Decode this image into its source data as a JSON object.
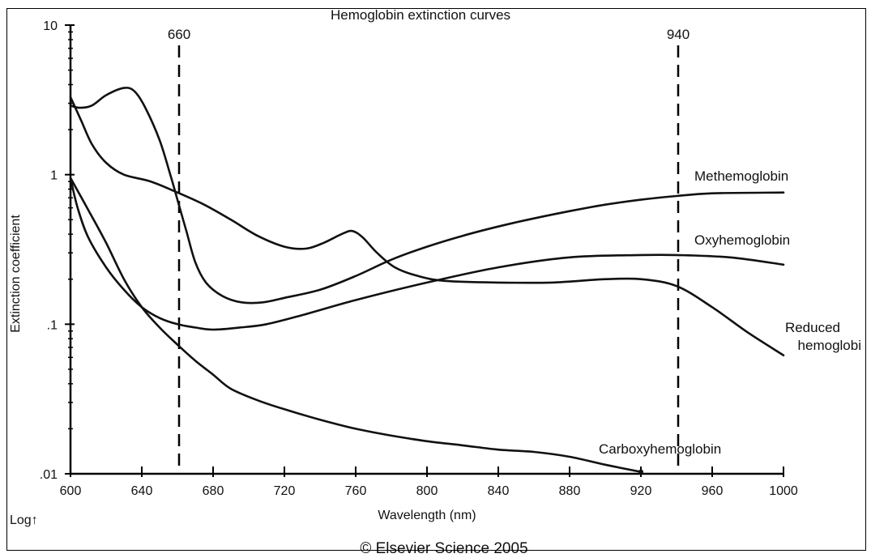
{
  "chart_data": {
    "type": "line",
    "title": "Hemoglobin extinction curves",
    "xlabel": "Wavelength (nm)",
    "ylabel": "Extinction coefficient",
    "y_scale": "log",
    "scale_note": "Log↑",
    "credit": "© Elsevier Science 2005",
    "xlim": [
      600,
      1000
    ],
    "ylim": [
      0.01,
      10
    ],
    "x_ticks": [
      600,
      640,
      680,
      720,
      760,
      800,
      840,
      880,
      920,
      960,
      1000
    ],
    "y_ticks": [
      {
        "value": 0.01,
        "label": ".01"
      },
      {
        "value": 0.1,
        "label": ".1"
      },
      {
        "value": 1,
        "label": "1"
      },
      {
        "value": 10,
        "label": "10"
      }
    ],
    "reference_lines": [
      {
        "x": 660,
        "label": "660"
      },
      {
        "x": 940,
        "label": "940"
      }
    ],
    "grid": false,
    "legend": "none (series labeled directly on curves)",
    "series": [
      {
        "name": "Methemoglobin",
        "points": [
          [
            600,
            2.9
          ],
          [
            605,
            2.8
          ],
          [
            612,
            2.9
          ],
          [
            620,
            3.4
          ],
          [
            630,
            3.8
          ],
          [
            636,
            3.6
          ],
          [
            642,
            2.8
          ],
          [
            650,
            1.7
          ],
          [
            656,
            1.0
          ],
          [
            660,
            0.68
          ],
          [
            665,
            0.42
          ],
          [
            670,
            0.26
          ],
          [
            676,
            0.19
          ],
          [
            685,
            0.155
          ],
          [
            696,
            0.14
          ],
          [
            708,
            0.14
          ],
          [
            720,
            0.15
          ],
          [
            740,
            0.17
          ],
          [
            760,
            0.21
          ],
          [
            780,
            0.27
          ],
          [
            800,
            0.33
          ],
          [
            820,
            0.39
          ],
          [
            840,
            0.45
          ],
          [
            860,
            0.51
          ],
          [
            880,
            0.57
          ],
          [
            900,
            0.63
          ],
          [
            920,
            0.68
          ],
          [
            940,
            0.72
          ],
          [
            960,
            0.75
          ],
          [
            1000,
            0.76
          ]
        ]
      },
      {
        "name": "Oxyhemoglobin",
        "points": [
          [
            600,
            0.95
          ],
          [
            604,
            0.6
          ],
          [
            610,
            0.38
          ],
          [
            620,
            0.24
          ],
          [
            630,
            0.17
          ],
          [
            640,
            0.13
          ],
          [
            650,
            0.11
          ],
          [
            660,
            0.1
          ],
          [
            670,
            0.095
          ],
          [
            680,
            0.092
          ],
          [
            695,
            0.095
          ],
          [
            710,
            0.1
          ],
          [
            730,
            0.115
          ],
          [
            760,
            0.145
          ],
          [
            800,
            0.19
          ],
          [
            840,
            0.24
          ],
          [
            880,
            0.28
          ],
          [
            920,
            0.29
          ],
          [
            940,
            0.29
          ],
          [
            970,
            0.28
          ],
          [
            1000,
            0.25
          ]
        ]
      },
      {
        "name": "Reduced hemoglobin",
        "points": [
          [
            600,
            3.3
          ],
          [
            606,
            2.3
          ],
          [
            612,
            1.6
          ],
          [
            620,
            1.2
          ],
          [
            630,
            1.0
          ],
          [
            645,
            0.9
          ],
          [
            660,
            0.76
          ],
          [
            675,
            0.63
          ],
          [
            690,
            0.5
          ],
          [
            705,
            0.39
          ],
          [
            720,
            0.33
          ],
          [
            732,
            0.32
          ],
          [
            742,
            0.35
          ],
          [
            752,
            0.4
          ],
          [
            758,
            0.42
          ],
          [
            764,
            0.38
          ],
          [
            772,
            0.3
          ],
          [
            782,
            0.24
          ],
          [
            795,
            0.21
          ],
          [
            810,
            0.195
          ],
          [
            840,
            0.19
          ],
          [
            870,
            0.19
          ],
          [
            900,
            0.2
          ],
          [
            920,
            0.2
          ],
          [
            940,
            0.18
          ],
          [
            960,
            0.13
          ],
          [
            980,
            0.088
          ],
          [
            1000,
            0.062
          ]
        ]
      },
      {
        "name": "Carboxyhemoglobin",
        "points": [
          [
            600,
            0.95
          ],
          [
            610,
            0.58
          ],
          [
            620,
            0.35
          ],
          [
            630,
            0.2
          ],
          [
            640,
            0.13
          ],
          [
            650,
            0.095
          ],
          [
            660,
            0.073
          ],
          [
            670,
            0.057
          ],
          [
            680,
            0.046
          ],
          [
            690,
            0.037
          ],
          [
            705,
            0.031
          ],
          [
            720,
            0.027
          ],
          [
            740,
            0.023
          ],
          [
            760,
            0.02
          ],
          [
            780,
            0.018
          ],
          [
            800,
            0.0165
          ],
          [
            820,
            0.0155
          ],
          [
            840,
            0.0145
          ],
          [
            860,
            0.014
          ],
          [
            880,
            0.013
          ],
          [
            900,
            0.0115
          ],
          [
            920,
            0.0103
          ]
        ]
      }
    ]
  }
}
